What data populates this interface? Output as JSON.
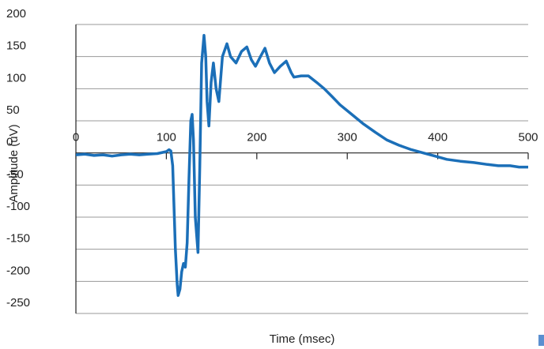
{
  "chart_data": {
    "type": "line",
    "x_label": "Time (msec)",
    "y_label": "Amplitude (uV)",
    "x": [
      0,
      10,
      20,
      30,
      40,
      50,
      60,
      70,
      80,
      90,
      100,
      103,
      105,
      107,
      110,
      112,
      113,
      115,
      117,
      119,
      121,
      123,
      125,
      127,
      128.5,
      130,
      132,
      135,
      137,
      139,
      141.6,
      143.5,
      145,
      147,
      149.5,
      152,
      155,
      158,
      162,
      167,
      171,
      177,
      183,
      189,
      194,
      198.5,
      204,
      209,
      214,
      219.5,
      226,
      232.5,
      238,
      241,
      249,
      257,
      266,
      274.5,
      283,
      292,
      305,
      318,
      331,
      344,
      357,
      371,
      384,
      397,
      410,
      425,
      440,
      455,
      467,
      480,
      490,
      500
    ],
    "color": "#1b6fb8",
    "values": [
      -3,
      -2,
      -4,
      -3,
      -5,
      -3,
      -2,
      -3,
      -2,
      -1,
      2,
      5,
      3,
      -20,
      -150,
      -205,
      -222,
      -212,
      -185,
      -172,
      -178,
      -140,
      -40,
      50,
      60,
      20,
      -100,
      -155,
      -20,
      140,
      183,
      150,
      80,
      42,
      110,
      140,
      100,
      80,
      150,
      170,
      150,
      140,
      158,
      165,
      145,
      135,
      150,
      163,
      140,
      125,
      135,
      143,
      125,
      118,
      120,
      120,
      110,
      100,
      88,
      75,
      60,
      45,
      32,
      20,
      12,
      5,
      0,
      -5,
      -10,
      -13,
      -15,
      -18,
      -20,
      -20,
      -22,
      -22
    ],
    "xlim": [
      0,
      500
    ],
    "xticks": [
      0,
      100,
      200,
      300,
      400,
      500
    ],
    "ylim": [
      -250,
      200
    ],
    "yticks": [
      -250,
      -200,
      -150,
      -100,
      -50,
      0,
      50,
      100,
      150,
      200
    ],
    "grid": true
  }
}
